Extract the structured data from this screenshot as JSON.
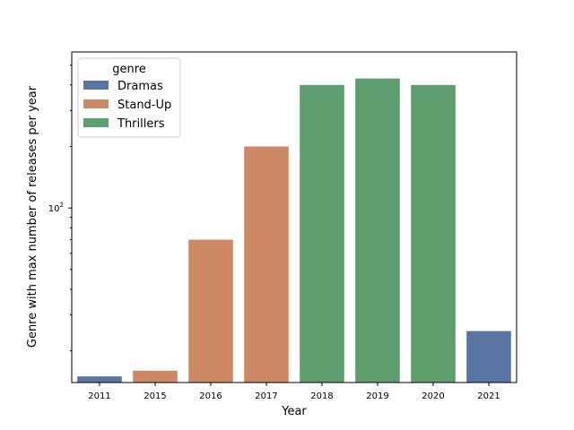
{
  "chart_data": {
    "type": "bar",
    "title": "",
    "xlabel": "Year",
    "ylabel": "Genre with max number of releases per year",
    "yscale": "log",
    "ylim": [
      14,
      580
    ],
    "y_major_tick": {
      "value": 100,
      "base": "10",
      "exponent": "2"
    },
    "grid": false,
    "legend": {
      "title": "genre",
      "placement": "top-left",
      "entries": [
        {
          "name": "Dramas",
          "color": "#5875a4"
        },
        {
          "name": "Stand-Up",
          "color": "#cc8963"
        },
        {
          "name": "Thrillers",
          "color": "#5f9e6e"
        }
      ]
    },
    "categories": [
      "2011",
      "2015",
      "2016",
      "2017",
      "2018",
      "2019",
      "2020",
      "2021"
    ],
    "values": [
      15,
      16,
      70,
      200,
      400,
      430,
      400,
      25
    ],
    "genres": [
      "Dramas",
      "Stand-Up",
      "Stand-Up",
      "Stand-Up",
      "Thrillers",
      "Thrillers",
      "Thrillers",
      "Dramas"
    ]
  }
}
